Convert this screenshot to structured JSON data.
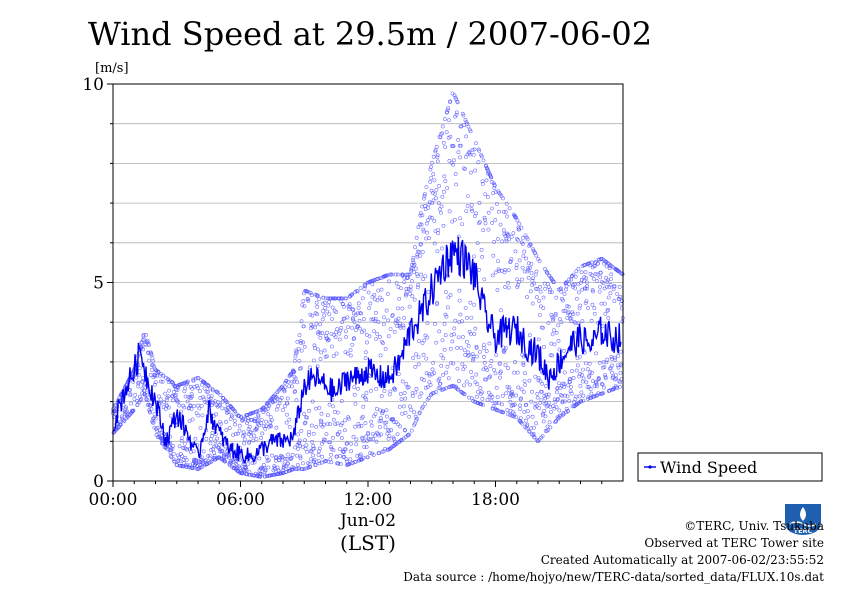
{
  "chart_data": {
    "type": "scatter",
    "title": "Wind Speed at 29.5m / 2007-06-02",
    "ylabel": "[m/s]",
    "xlabel_date": "Jun-02",
    "xlabel_zone": "(LST)",
    "xlim": [
      0,
      24
    ],
    "ylim": [
      0,
      10
    ],
    "x_ticks": [
      "00:00",
      "06:00",
      "12:00",
      "18:00"
    ],
    "x_tick_values": [
      0,
      6,
      12,
      18
    ],
    "y_ticks": [
      "0",
      "5",
      "10"
    ],
    "y_tick_values": [
      0,
      5,
      10
    ],
    "grid": true,
    "legend_position": "outside-right-bottom",
    "series": [
      {
        "name": "Wind Speed",
        "kind": "line-mean",
        "color": "#0000ee",
        "x": [
          0.0,
          0.5,
          1.0,
          1.3,
          1.6,
          2.0,
          2.5,
          3.0,
          3.5,
          4.0,
          4.5,
          5.0,
          5.5,
          6.0,
          6.5,
          7.0,
          7.5,
          8.0,
          8.5,
          9.0,
          9.5,
          10.0,
          10.5,
          11.0,
          11.5,
          12.0,
          12.5,
          13.0,
          13.5,
          14.0,
          14.5,
          15.0,
          15.5,
          16.0,
          16.5,
          17.0,
          17.5,
          18.0,
          18.5,
          19.0,
          19.5,
          20.0,
          20.5,
          21.0,
          21.5,
          22.0,
          22.5,
          23.0,
          23.5
        ],
        "values": [
          1.4,
          2.2,
          2.8,
          3.3,
          2.6,
          2.0,
          1.0,
          1.7,
          1.2,
          0.6,
          1.8,
          1.2,
          0.8,
          0.7,
          0.6,
          0.8,
          1.0,
          1.0,
          1.1,
          2.4,
          2.6,
          2.4,
          2.2,
          2.6,
          2.6,
          2.8,
          2.6,
          2.6,
          3.0,
          3.8,
          4.2,
          4.8,
          5.4,
          5.8,
          5.6,
          5.2,
          4.2,
          3.6,
          3.8,
          3.8,
          3.4,
          3.2,
          2.6,
          3.0,
          3.4,
          3.6,
          3.4,
          3.8,
          3.6
        ]
      },
      {
        "name": "",
        "kind": "scatter-samples",
        "color": "#5555ff",
        "envelope_x": [
          0,
          1,
          1.5,
          2,
          3,
          4,
          5,
          6,
          7,
          8,
          8.5,
          9,
          10,
          11,
          12,
          13,
          14,
          14.5,
          15,
          16,
          17,
          18,
          19,
          20,
          21,
          22,
          23,
          24
        ],
        "envelope_low": [
          1.2,
          1.8,
          2.2,
          1.2,
          0.4,
          0.3,
          0.6,
          0.2,
          0.1,
          0.2,
          0.3,
          0.3,
          0.5,
          0.4,
          0.6,
          0.8,
          1.2,
          1.8,
          2.2,
          2.4,
          2.0,
          1.8,
          1.6,
          1.0,
          1.6,
          2.0,
          2.2,
          2.4
        ],
        "envelope_high": [
          1.8,
          2.8,
          3.8,
          2.8,
          2.4,
          2.6,
          2.2,
          1.6,
          1.8,
          2.4,
          2.8,
          4.8,
          4.6,
          4.6,
          5.0,
          5.2,
          5.2,
          6.8,
          8.0,
          9.8,
          8.6,
          7.4,
          6.6,
          5.6,
          4.8,
          5.4,
          5.6,
          5.2
        ]
      }
    ]
  },
  "credits": {
    "copyright": "©TERC, Univ. Tsukuba",
    "observed": "Observed at TERC Tower site",
    "created": "Created Automatically at 2007-06-02/23:55:52",
    "source": "Data source : /home/hojyo/new/TERC-data/sorted_data/FLUX.10s.dat"
  },
  "logo_text": "TERC",
  "legend_label": "Wind Speed"
}
